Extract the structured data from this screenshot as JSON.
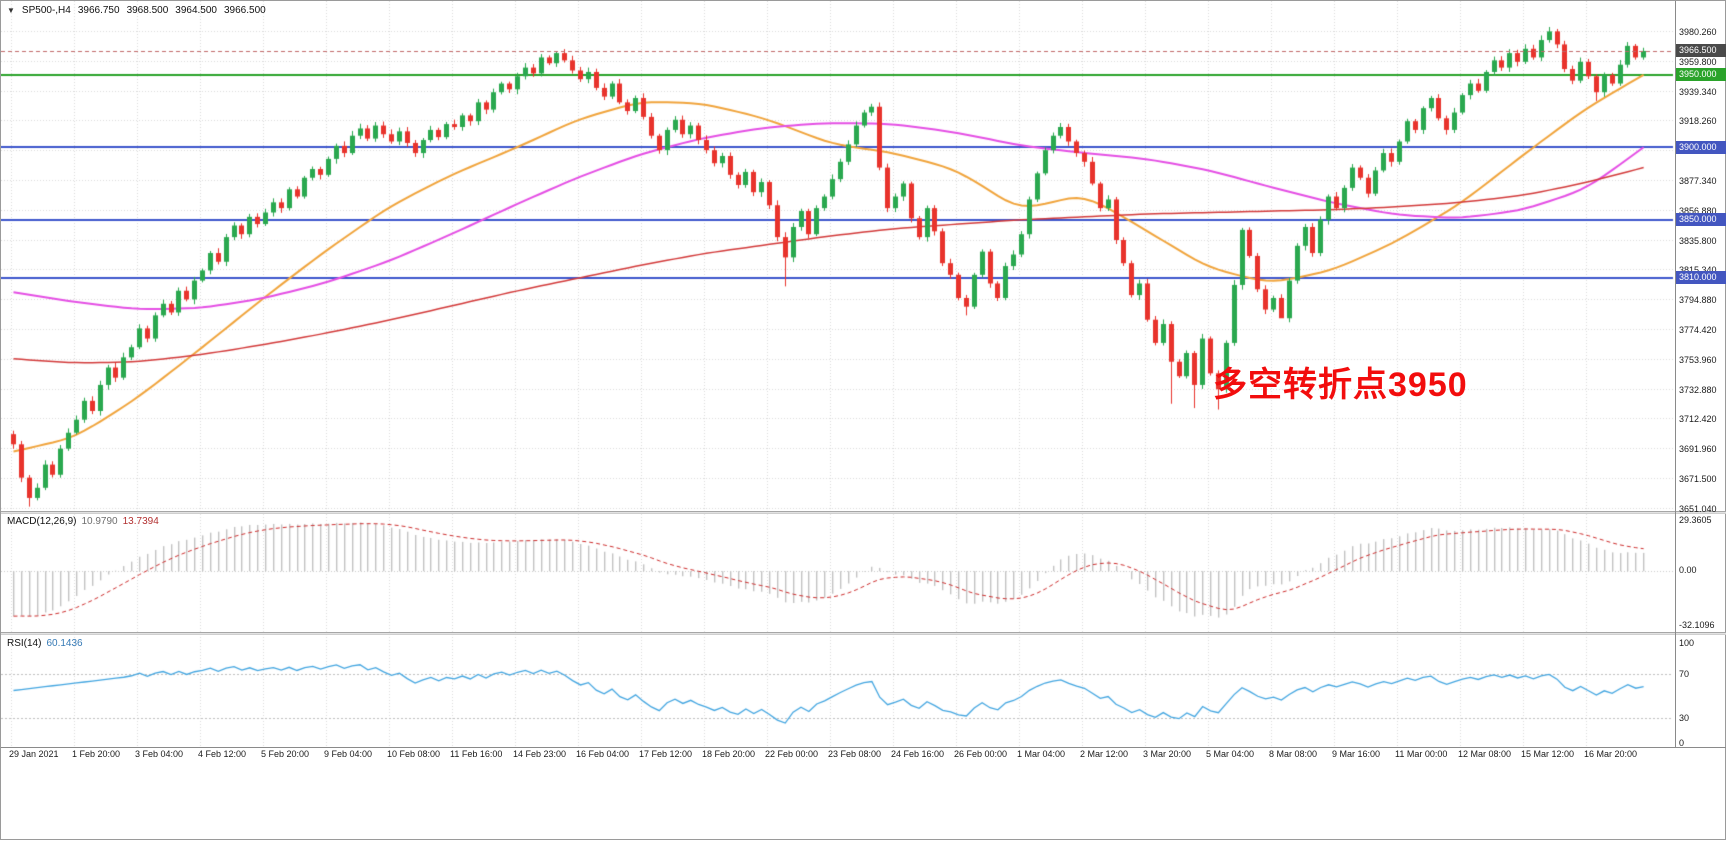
{
  "header": {
    "dropdown_icon": "▼",
    "symbol_period": "SP500-,H4",
    "open": "3966.750",
    "high": "3968.500",
    "low": "3964.500",
    "close": "3966.500"
  },
  "annotation": {
    "text": "多空转折点3950",
    "color": "#f20d0d"
  },
  "price_axis": {
    "ticks": [
      "3980.260",
      "3959.800",
      "3939.340",
      "3918.260",
      "",
      "3877.340",
      "3856.880",
      "3835.800",
      "3815.340",
      "3794.880",
      "3774.420",
      "3753.960",
      "3732.880",
      "3712.420",
      "3691.960",
      "3671.500",
      "3651.040"
    ],
    "boxes": [
      {
        "label": "3966.500",
        "price": 3966.5,
        "color": "#4a4a4a"
      },
      {
        "label": "3950.000",
        "price": 3950,
        "color": "#2aa32a"
      },
      {
        "label": "3900.000",
        "price": 3900,
        "color": "#4356c0"
      },
      {
        "label": "3850.000",
        "price": 3850,
        "color": "#4356c0"
      },
      {
        "label": "3810.000",
        "price": 3810,
        "color": "#4356c0"
      }
    ]
  },
  "macd_panel": {
    "name": "MACD(12,26,9)",
    "value_main": "10.9790",
    "value_signal": "13.7394",
    "axis_labels": [
      "29.3605",
      "0.00",
      "-32.1096"
    ]
  },
  "rsi_panel": {
    "name": "RSI(14)",
    "value": "60.1436",
    "axis_labels": [
      "100",
      "70",
      "30",
      "0"
    ]
  },
  "chart_data": {
    "type": "candlestick",
    "title": "SP500-,H4",
    "quote": {
      "open": 3966.75,
      "high": 3968.5,
      "low": 3964.5,
      "close": 3966.5
    },
    "current_price": 3966.5,
    "ylim": [
      3651.04,
      3980.26
    ],
    "candles_per_label": 8,
    "x_labels": [
      "29 Jan 2021",
      "1 Feb 20:00",
      "3 Feb 04:00",
      "4 Feb 12:00",
      "5 Feb 20:00",
      "9 Feb 04:00",
      "10 Feb 08:00",
      "11 Feb 16:00",
      "14 Feb 23:00",
      "16 Feb 04:00",
      "17 Feb 12:00",
      "18 Feb 20:00",
      "22 Feb 00:00",
      "23 Feb 08:00",
      "24 Feb 16:00",
      "26 Feb 00:00",
      "1 Mar 04:00",
      "2 Mar 12:00",
      "3 Mar 20:00",
      "5 Mar 04:00",
      "8 Mar 08:00",
      "9 Mar 16:00",
      "11 Mar 00:00",
      "12 Mar 08:00",
      "15 Mar 12:00",
      "16 Mar 20:00"
    ],
    "first_open": 3702,
    "closes": [
      3695,
      3672,
      3658,
      3665,
      3681,
      3674,
      3692,
      3703,
      3712,
      3725,
      3718,
      3736,
      3748,
      3741,
      3755,
      3762,
      3775,
      3768,
      3784,
      3792,
      3786,
      3801,
      3795,
      3808,
      3815,
      3827,
      3821,
      3838,
      3846,
      3840,
      3852,
      3847,
      3855,
      3862,
      3858,
      3871,
      3866,
      3879,
      3885,
      3881,
      3892,
      3901,
      3896,
      3908,
      3913,
      3906,
      3915,
      3909,
      3904,
      3911,
      3903,
      3896,
      3905,
      3912,
      3907,
      3916,
      3914,
      3922,
      3918,
      3931,
      3926,
      3938,
      3944,
      3940,
      3949,
      3955,
      3951,
      3962,
      3958,
      3965,
      3960,
      3953,
      3947,
      3952,
      3941,
      3935,
      3944,
      3931,
      3925,
      3934,
      3921,
      3908,
      3898,
      3912,
      3919,
      3909,
      3915,
      3905,
      3898,
      3889,
      3894,
      3881,
      3874,
      3883,
      3869,
      3876,
      3860,
      3838,
      3824,
      3845,
      3856,
      3840,
      3858,
      3866,
      3878,
      3890,
      3902,
      3915,
      3924,
      3928,
      3886,
      3858,
      3866,
      3875,
      3851,
      3838,
      3858,
      3842,
      3820,
      3812,
      3796,
      3790,
      3812,
      3828,
      3806,
      3796,
      3818,
      3826,
      3840,
      3864,
      3882,
      3898,
      3908,
      3914,
      3904,
      3896,
      3890,
      3875,
      3858,
      3864,
      3836,
      3820,
      3798,
      3806,
      3781,
      3765,
      3778,
      3752,
      3742,
      3758,
      3736,
      3768,
      3744,
      3733,
      3765,
      3805,
      3843,
      3825,
      3802,
      3788,
      3796,
      3782,
      3808,
      3832,
      3845,
      3827,
      3850,
      3866,
      3858,
      3872,
      3886,
      3879,
      3868,
      3884,
      3896,
      3890,
      3904,
      3918,
      3912,
      3927,
      3934,
      3920,
      3912,
      3924,
      3936,
      3944,
      3939,
      3952,
      3960,
      3955,
      3965,
      3959,
      3968,
      3962,
      3974,
      3980,
      3971,
      3954,
      3946,
      3959,
      3949,
      3938,
      3950,
      3944,
      3957,
      3970,
      3962,
      3966.5
    ],
    "wick_low_overrides": {
      "2": 3652,
      "98": 3804,
      "121": 3784,
      "147": 3723,
      "150": 3720,
      "153": 3719,
      "161": 3784,
      "201": 3932
    },
    "wick_high_overrides": {
      "195": 3983
    },
    "levels": [
      {
        "price": 3950,
        "color": "#2aa32a",
        "label": "3950.000"
      },
      {
        "price": 3900,
        "color": "#3c55cc",
        "label": "3900.000"
      },
      {
        "price": 3850,
        "color": "#3c55cc",
        "label": "3850.000"
      },
      {
        "price": 3810,
        "color": "#3c55cc",
        "label": "3810.000"
      }
    ],
    "ma_lines": [
      {
        "name": "fast-ma",
        "color": "#f0a43c",
        "width": 2,
        "anchors": [
          [
            0,
            3690
          ],
          [
            8,
            3700
          ],
          [
            16,
            3728
          ],
          [
            24,
            3762
          ],
          [
            32,
            3797
          ],
          [
            40,
            3830
          ],
          [
            48,
            3860
          ],
          [
            56,
            3882
          ],
          [
            64,
            3900
          ],
          [
            72,
            3920
          ],
          [
            80,
            3932
          ],
          [
            88,
            3930
          ],
          [
            96,
            3919
          ],
          [
            104,
            3902
          ],
          [
            112,
            3896
          ],
          [
            120,
            3884
          ],
          [
            128,
            3856
          ],
          [
            136,
            3868
          ],
          [
            144,
            3842
          ],
          [
            152,
            3816
          ],
          [
            160,
            3806
          ],
          [
            168,
            3816
          ],
          [
            176,
            3836
          ],
          [
            184,
            3862
          ],
          [
            192,
            3896
          ],
          [
            200,
            3928
          ],
          [
            207,
            3950
          ]
        ]
      },
      {
        "name": "mid-ma",
        "color": "#e44ee4",
        "width": 2,
        "anchors": [
          [
            0,
            3800
          ],
          [
            8,
            3793
          ],
          [
            16,
            3788
          ],
          [
            24,
            3789
          ],
          [
            32,
            3796
          ],
          [
            40,
            3807
          ],
          [
            48,
            3822
          ],
          [
            56,
            3841
          ],
          [
            64,
            3861
          ],
          [
            72,
            3880
          ],
          [
            80,
            3896
          ],
          [
            88,
            3907
          ],
          [
            96,
            3914
          ],
          [
            104,
            3917
          ],
          [
            112,
            3916
          ],
          [
            120,
            3910
          ],
          [
            128,
            3901
          ],
          [
            136,
            3896
          ],
          [
            144,
            3892
          ],
          [
            152,
            3884
          ],
          [
            160,
            3872
          ],
          [
            168,
            3861
          ],
          [
            176,
            3853
          ],
          [
            184,
            3851
          ],
          [
            192,
            3857
          ],
          [
            200,
            3872
          ],
          [
            207,
            3900
          ]
        ]
      },
      {
        "name": "slow-ma",
        "color": "#d23939",
        "width": 1.5,
        "anchors": [
          [
            0,
            3754
          ],
          [
            8,
            3751
          ],
          [
            16,
            3752
          ],
          [
            24,
            3757
          ],
          [
            32,
            3764
          ],
          [
            40,
            3772
          ],
          [
            48,
            3781
          ],
          [
            56,
            3791
          ],
          [
            64,
            3801
          ],
          [
            72,
            3810
          ],
          [
            80,
            3819
          ],
          [
            88,
            3827
          ],
          [
            96,
            3833
          ],
          [
            104,
            3839
          ],
          [
            112,
            3844
          ],
          [
            120,
            3847
          ],
          [
            128,
            3850
          ],
          [
            136,
            3852
          ],
          [
            144,
            3854
          ],
          [
            152,
            3855
          ],
          [
            160,
            3856
          ],
          [
            168,
            3857
          ],
          [
            176,
            3859
          ],
          [
            184,
            3862
          ],
          [
            192,
            3867
          ],
          [
            200,
            3876
          ],
          [
            207,
            3886
          ]
        ]
      }
    ],
    "colors": {
      "up": "#2aa84f",
      "down": "#e8332c",
      "grid": "#d9d9d9",
      "current_price_line": "#c06868"
    },
    "macd": {
      "label": "MACD(12,26,9)",
      "fast": 12,
      "slow": 26,
      "signal": 9,
      "current_main": 10.979,
      "current_signal": 13.7394,
      "ylim": [
        -32.1096,
        29.3605
      ],
      "histogram_color": "#c2c2c2",
      "signal_color": "#cc2a2a"
    },
    "rsi": {
      "label": "RSI(14)",
      "period": 14,
      "current": 60.1436,
      "ylim": [
        0,
        100
      ],
      "levels": [
        70,
        30
      ],
      "line_color": "#42a5e0",
      "level_color": "#bdbdbd"
    }
  }
}
